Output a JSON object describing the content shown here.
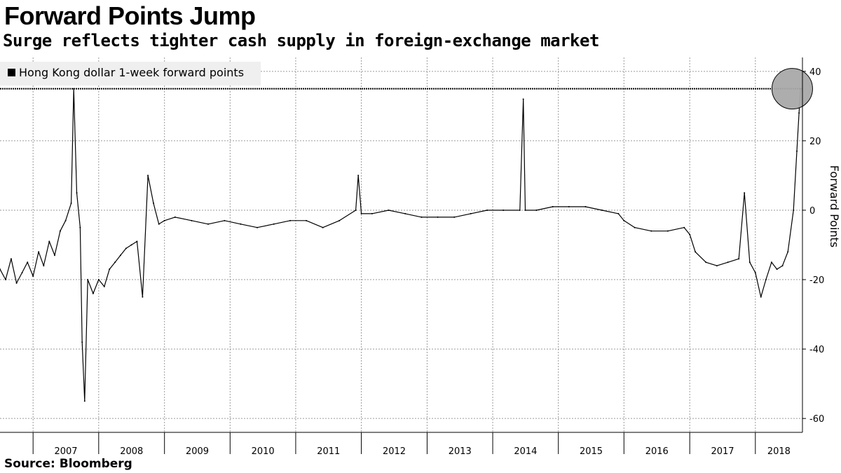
{
  "title": "Forward Points Jump",
  "subtitle": "Surge reflects tighter cash supply in foreign-exchange market",
  "source": "Source: Bloomberg",
  "chart_data": {
    "type": "line",
    "title": "Forward Points Jump",
    "subtitle": "Surge reflects tighter cash supply in foreign-exchange market",
    "ylabel": "Forward Points",
    "xlabel": "",
    "ylim": [
      -64,
      44
    ],
    "xlim": [
      "2006-07-01",
      "2018-09-20"
    ],
    "y_ticks": [
      40,
      20,
      0,
      -20,
      -40,
      -60
    ],
    "x_tick_labels": [
      "2007",
      "2008",
      "2009",
      "2010",
      "2011",
      "2012",
      "2013",
      "2014",
      "2015",
      "2016",
      "2017",
      "2018"
    ],
    "grid": true,
    "legend_position": "top-left",
    "reference_line": {
      "value": 35,
      "style": "dotted"
    },
    "highlight": {
      "x": "2018-09-10",
      "y": 35,
      "shape": "circle"
    },
    "series": [
      {
        "name": "Hong Kong dollar 1-week forward points",
        "color": "#000000",
        "points": [
          [
            "2006-07-01",
            -17
          ],
          [
            "2006-08-01",
            -20
          ],
          [
            "2006-09-01",
            -14
          ],
          [
            "2006-10-01",
            -21
          ],
          [
            "2006-11-01",
            -18
          ],
          [
            "2006-12-01",
            -15
          ],
          [
            "2007-01-01",
            -19
          ],
          [
            "2007-02-01",
            -12
          ],
          [
            "2007-03-01",
            -16
          ],
          [
            "2007-04-01",
            -9
          ],
          [
            "2007-05-01",
            -13
          ],
          [
            "2007-06-01",
            -6
          ],
          [
            "2007-07-01",
            -3
          ],
          [
            "2007-08-01",
            2
          ],
          [
            "2007-08-15",
            35
          ],
          [
            "2007-09-01",
            5
          ],
          [
            "2007-09-20",
            -5
          ],
          [
            "2007-10-01",
            -38
          ],
          [
            "2007-10-15",
            -55
          ],
          [
            "2007-11-01",
            -20
          ],
          [
            "2007-12-01",
            -24
          ],
          [
            "2008-01-01",
            -20
          ],
          [
            "2008-02-01",
            -22
          ],
          [
            "2008-03-01",
            -17
          ],
          [
            "2008-04-01",
            -15
          ],
          [
            "2008-05-01",
            -13
          ],
          [
            "2008-06-01",
            -11
          ],
          [
            "2008-07-01",
            -10
          ],
          [
            "2008-08-01",
            -9
          ],
          [
            "2008-09-01",
            -25
          ],
          [
            "2008-10-01",
            10
          ],
          [
            "2008-11-01",
            2
          ],
          [
            "2008-12-01",
            -4
          ],
          [
            "2009-01-01",
            -3
          ],
          [
            "2009-03-01",
            -2
          ],
          [
            "2009-06-01",
            -3
          ],
          [
            "2009-09-01",
            -4
          ],
          [
            "2009-12-01",
            -3
          ],
          [
            "2010-03-01",
            -4
          ],
          [
            "2010-06-01",
            -5
          ],
          [
            "2010-09-01",
            -4
          ],
          [
            "2010-12-01",
            -3
          ],
          [
            "2011-03-01",
            -3
          ],
          [
            "2011-06-01",
            -5
          ],
          [
            "2011-09-01",
            -3
          ],
          [
            "2011-12-01",
            0
          ],
          [
            "2011-12-15",
            10
          ],
          [
            "2012-01-01",
            -1
          ],
          [
            "2012-03-01",
            -1
          ],
          [
            "2012-06-01",
            0
          ],
          [
            "2012-09-01",
            -1
          ],
          [
            "2012-12-01",
            -2
          ],
          [
            "2013-03-01",
            -2
          ],
          [
            "2013-06-01",
            -2
          ],
          [
            "2013-09-01",
            -1
          ],
          [
            "2013-12-01",
            0
          ],
          [
            "2014-03-01",
            0
          ],
          [
            "2014-06-01",
            0
          ],
          [
            "2014-06-20",
            32
          ],
          [
            "2014-07-01",
            0
          ],
          [
            "2014-09-01",
            0
          ],
          [
            "2014-12-01",
            1
          ],
          [
            "2015-03-01",
            1
          ],
          [
            "2015-06-01",
            1
          ],
          [
            "2015-09-01",
            0
          ],
          [
            "2015-12-01",
            -1
          ],
          [
            "2016-01-01",
            -3
          ],
          [
            "2016-03-01",
            -5
          ],
          [
            "2016-06-01",
            -6
          ],
          [
            "2016-09-01",
            -6
          ],
          [
            "2016-12-01",
            -5
          ],
          [
            "2017-01-01",
            -7
          ],
          [
            "2017-02-01",
            -12
          ],
          [
            "2017-04-01",
            -15
          ],
          [
            "2017-06-01",
            -16
          ],
          [
            "2017-08-01",
            -15
          ],
          [
            "2017-10-01",
            -14
          ],
          [
            "2017-11-01",
            5
          ],
          [
            "2017-12-01",
            -15
          ],
          [
            "2018-01-01",
            -18
          ],
          [
            "2018-02-01",
            -25
          ],
          [
            "2018-03-01",
            -20
          ],
          [
            "2018-04-01",
            -15
          ],
          [
            "2018-05-01",
            -17
          ],
          [
            "2018-06-01",
            -16
          ],
          [
            "2018-07-01",
            -12
          ],
          [
            "2018-08-01",
            0
          ],
          [
            "2018-08-20",
            17
          ],
          [
            "2018-09-01",
            28
          ],
          [
            "2018-09-10",
            35
          ]
        ]
      }
    ]
  }
}
